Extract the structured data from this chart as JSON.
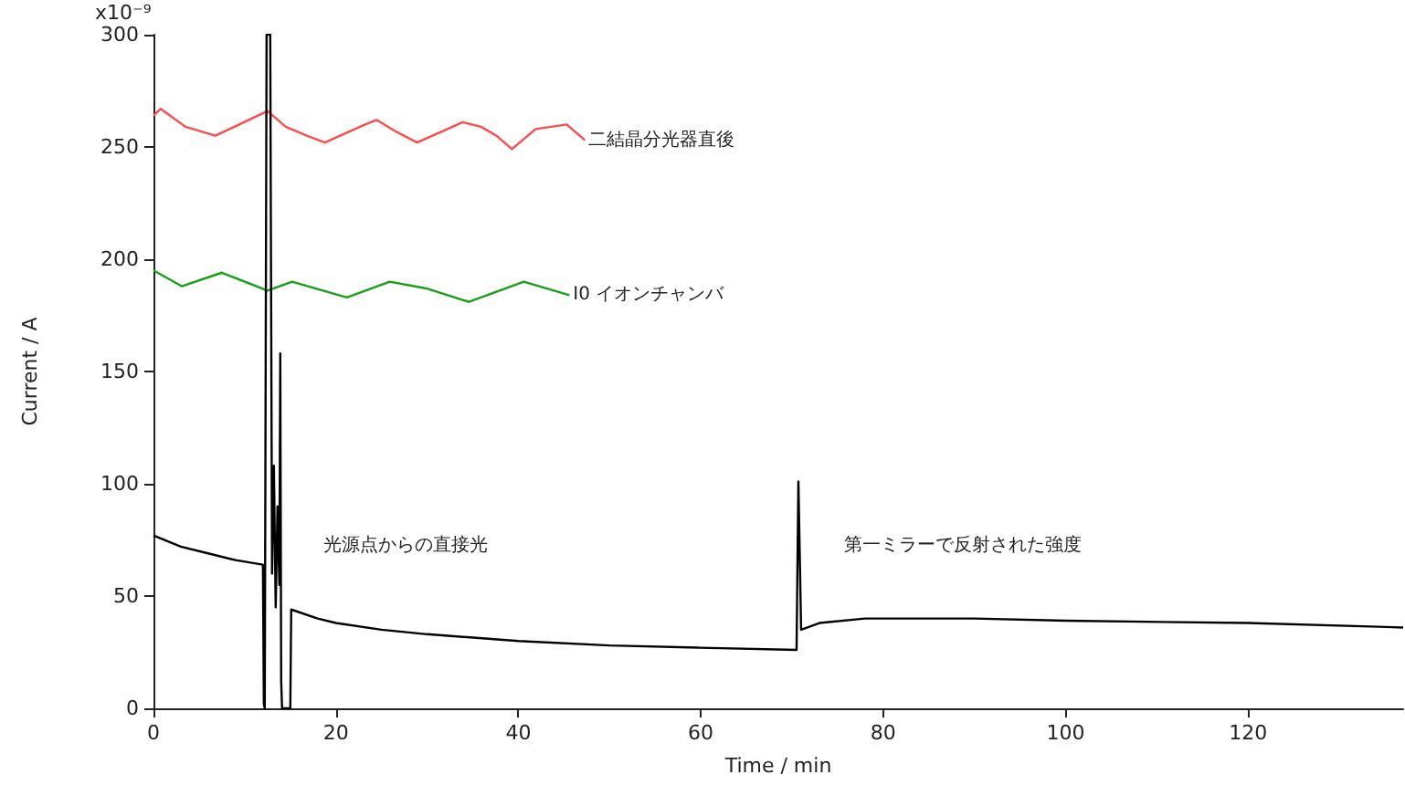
{
  "chart_data": {
    "type": "line",
    "xlabel": "Time / min",
    "ylabel": "Current / A",
    "xlim": [
      0,
      137
    ],
    "xticks": [
      0,
      20,
      40,
      60,
      80,
      100,
      120
    ],
    "ylim": [
      0,
      300
    ],
    "yticks": [
      0,
      50,
      100,
      150,
      200,
      250,
      300
    ],
    "grid": false,
    "legend": false,
    "marker": "none",
    "line_style": "solid",
    "series": [
      {
        "name": "二結晶分光器直後",
        "color": "#ff4b4b",
        "x": [
          0,
          0.8,
          3.5,
          6.8,
          12.5,
          14.5,
          16.8,
          18.8,
          23.2,
          24.5,
          26.5,
          28.9,
          33.9,
          35.9,
          37.6,
          39.3,
          41.9,
          45.3,
          47.3
        ],
        "values": [
          264,
          267,
          259,
          255,
          266,
          259,
          255,
          252,
          260,
          262,
          257,
          252,
          261,
          259,
          255,
          249,
          258,
          260,
          253
        ]
      },
      {
        "name": "I0 イオンチャンバ",
        "color": "#17a017",
        "x": [
          0,
          3.1,
          7.5,
          12.5,
          15.2,
          21.2,
          25.9,
          29.9,
          34.6,
          40.6,
          45.6
        ],
        "values": [
          195,
          188,
          194,
          186,
          190,
          183,
          190,
          187,
          181,
          190,
          184
        ]
      },
      {
        "color": "#000000",
        "x": [
          0,
          3,
          6,
          9,
          12,
          12.1,
          12.2,
          12.4,
          12.8,
          13.0,
          13.2,
          13.4,
          13.6,
          13.8,
          13.9,
          14.0,
          14.1,
          15,
          15.1,
          18,
          20,
          25,
          30,
          40,
          50,
          60,
          70.5,
          70.7,
          71.0,
          73,
          78,
          90,
          100,
          120,
          137
        ],
        "values": [
          77,
          72,
          69,
          66,
          64,
          2,
          0,
          300,
          300,
          60,
          108,
          45,
          90,
          55,
          158,
          12,
          0,
          0,
          44,
          40,
          38,
          35,
          33,
          30,
          28,
          27,
          26,
          101,
          35,
          38,
          40,
          40,
          39,
          38,
          36
        ]
      }
    ],
    "annotations": [
      "光源点からの直接光",
      "第一ミラーで反射された強度",
      "x10⁻⁹"
    ]
  }
}
